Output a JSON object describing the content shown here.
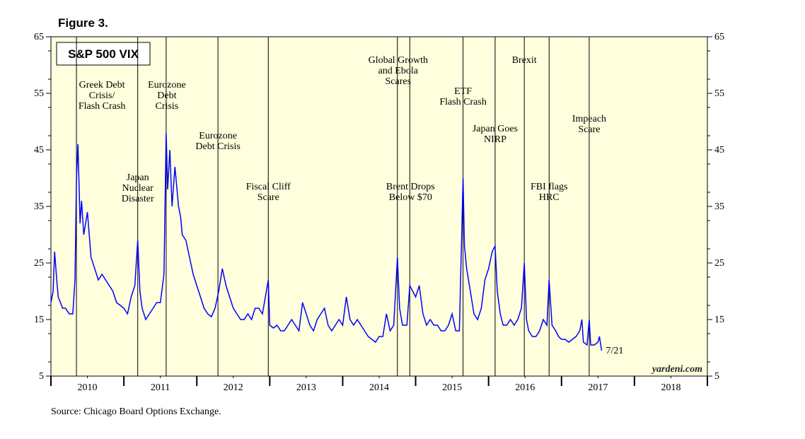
{
  "chart_data": {
    "type": "line",
    "figure_label": "Figure 3.",
    "title": "S&P 500 VIX",
    "source": "Source: Chicago Board Options Exchange.",
    "watermark": "yardeni.com",
    "end_label": "7/21",
    "xlim": [
      2010,
      2019
    ],
    "xticks": [
      {
        "value": 2010.5,
        "label": "2010"
      },
      {
        "value": 2011.5,
        "label": "2011"
      },
      {
        "value": 2012.5,
        "label": "2012"
      },
      {
        "value": 2013.5,
        "label": "2013"
      },
      {
        "value": 2014.5,
        "label": "2014"
      },
      {
        "value": 2015.5,
        "label": "2015"
      },
      {
        "value": 2016.5,
        "label": "2016"
      },
      {
        "value": 2017.5,
        "label": "2017"
      },
      {
        "value": 2018.5,
        "label": "2018"
      }
    ],
    "ylim": [
      5,
      65
    ],
    "yticks": [
      5,
      15,
      25,
      35,
      45,
      55,
      65
    ],
    "series": [
      {
        "name": "S&P 500 VIX",
        "color": "#0000ff",
        "x": [
          2010.0,
          2010.03,
          2010.05,
          2010.08,
          2010.1,
          2010.13,
          2010.16,
          2010.2,
          2010.25,
          2010.3,
          2010.33,
          2010.35,
          2010.37,
          2010.4,
          2010.42,
          2010.45,
          2010.5,
          2010.55,
          2010.6,
          2010.65,
          2010.7,
          2010.75,
          2010.8,
          2010.85,
          2010.9,
          2010.95,
          2011.0,
          2011.05,
          2011.1,
          2011.15,
          2011.19,
          2011.22,
          2011.25,
          2011.3,
          2011.35,
          2011.4,
          2011.45,
          2011.5,
          2011.55,
          2011.58,
          2011.6,
          2011.63,
          2011.66,
          2011.7,
          2011.75,
          2011.78,
          2011.8,
          2011.85,
          2011.9,
          2011.95,
          2012.0,
          2012.05,
          2012.1,
          2012.15,
          2012.2,
          2012.25,
          2012.3,
          2012.35,
          2012.4,
          2012.45,
          2012.5,
          2012.55,
          2012.6,
          2012.65,
          2012.7,
          2012.75,
          2012.8,
          2012.85,
          2012.9,
          2012.98,
          2013.0,
          2013.05,
          2013.1,
          2013.15,
          2013.2,
          2013.25,
          2013.3,
          2013.4,
          2013.45,
          2013.5,
          2013.55,
          2013.6,
          2013.65,
          2013.7,
          2013.75,
          2013.8,
          2013.85,
          2013.9,
          2013.95,
          2014.0,
          2014.05,
          2014.1,
          2014.15,
          2014.2,
          2014.25,
          2014.3,
          2014.35,
          2014.4,
          2014.45,
          2014.5,
          2014.55,
          2014.6,
          2014.65,
          2014.7,
          2014.75,
          2014.78,
          2014.82,
          2014.88,
          2014.92,
          2015.0,
          2015.05,
          2015.1,
          2015.15,
          2015.2,
          2015.25,
          2015.3,
          2015.35,
          2015.4,
          2015.45,
          2015.5,
          2015.55,
          2015.6,
          2015.65,
          2015.67,
          2015.7,
          2015.75,
          2015.8,
          2015.85,
          2015.9,
          2015.95,
          2016.0,
          2016.05,
          2016.09,
          2016.12,
          2016.16,
          2016.2,
          2016.25,
          2016.3,
          2016.35,
          2016.4,
          2016.45,
          2016.49,
          2016.52,
          2016.55,
          2016.6,
          2016.65,
          2016.7,
          2016.75,
          2016.8,
          2016.83,
          2016.87,
          2016.92,
          2016.96,
          2017.0,
          2017.05,
          2017.1,
          2017.15,
          2017.2,
          2017.25,
          2017.28,
          2017.3,
          2017.35,
          2017.38,
          2017.4,
          2017.45,
          2017.5,
          2017.52,
          2017.55
        ],
        "values": [
          18,
          20,
          27,
          22,
          19,
          18,
          17,
          17,
          16,
          16,
          22,
          40,
          46,
          32,
          36,
          30,
          34,
          26,
          24,
          22,
          23,
          22,
          21,
          20,
          18,
          17.5,
          17,
          16,
          19,
          21,
          29,
          20,
          17,
          15,
          16,
          17,
          18,
          18,
          23,
          48,
          38,
          45,
          35,
          42,
          35,
          33,
          30,
          29,
          26,
          23,
          21,
          19,
          17,
          16,
          15.5,
          17,
          20,
          24,
          21,
          19,
          17,
          16,
          15,
          15,
          16,
          15,
          17,
          17,
          16,
          22,
          14,
          13.5,
          14,
          13,
          13,
          14,
          15,
          13,
          18,
          16,
          14,
          13,
          15,
          16,
          17,
          14,
          13,
          14,
          15,
          14,
          19,
          15,
          14,
          15,
          14,
          13,
          12,
          11.5,
          11,
          12,
          12,
          16,
          13,
          14,
          26,
          17,
          14,
          14,
          21,
          19,
          21,
          16,
          14,
          15,
          14,
          14,
          13,
          13,
          14,
          16,
          13,
          13,
          40,
          28,
          24,
          20,
          16,
          15,
          17,
          22,
          24,
          27,
          28,
          20,
          16,
          14,
          14,
          15,
          14,
          15,
          17,
          25,
          15,
          13,
          12,
          12,
          13,
          15,
          14,
          22,
          14,
          13,
          12,
          11.5,
          11.5,
          11,
          11.5,
          12,
          13,
          15,
          11,
          10.5,
          15,
          10.5,
          10.5,
          11,
          12,
          9.5
        ]
      }
    ],
    "events": [
      {
        "x": 2010.35,
        "label": [
          "Greek Debt",
          "Crisis/",
          "Flash Crash"
        ]
      },
      {
        "x": 2011.19,
        "label": [
          "Japan",
          "Nuclear",
          "Disaster"
        ]
      },
      {
        "x": 2011.58,
        "label": [
          "Eurozone",
          "Debt",
          "Crisis"
        ]
      },
      {
        "x": 2012.29,
        "label": [
          "Eurozone",
          "Debt Crisis"
        ]
      },
      {
        "x": 2012.98,
        "label": [
          "Fiscal Cliff",
          "Scare"
        ]
      },
      {
        "x": 2014.75,
        "label": [
          "Global Growth",
          "and Ebola",
          "Scares"
        ]
      },
      {
        "x": 2014.92,
        "label": [
          "Brent Drops",
          "Below $70"
        ]
      },
      {
        "x": 2015.65,
        "label": [
          "ETF",
          "Flash Crash"
        ]
      },
      {
        "x": 2016.09,
        "label": [
          "Japan Goes",
          "NIRP"
        ]
      },
      {
        "x": 2016.49,
        "label": [
          "Brexit"
        ]
      },
      {
        "x": 2016.83,
        "label": [
          "FBI flags",
          "HRC"
        ]
      },
      {
        "x": 2017.38,
        "label": [
          "Impeach",
          "Scare"
        ]
      }
    ]
  }
}
